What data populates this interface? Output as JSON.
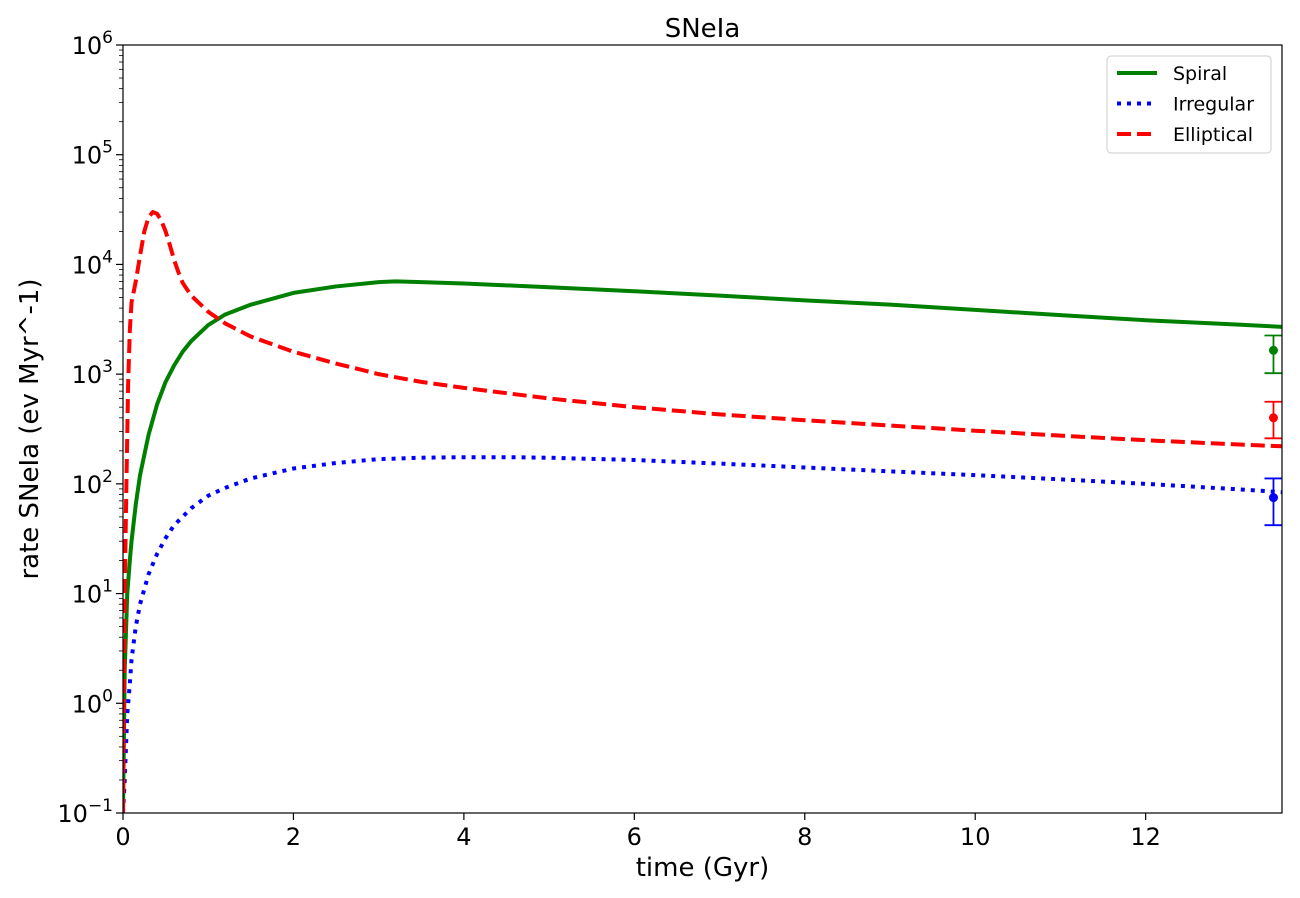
{
  "chart_data": {
    "type": "line",
    "title": "SNeIa",
    "xlabel": "time (Gyr)",
    "ylabel": "rate SNeIa (ev Myr^-1)",
    "xlim": [
      0,
      13.6
    ],
    "ylim": [
      0.1,
      1000000
    ],
    "yscale": "log",
    "grid": false,
    "legend_position": "top-right",
    "x_ticks": [
      0,
      2,
      4,
      6,
      8,
      10,
      12
    ],
    "x_tick_labels": [
      "0",
      "2",
      "4",
      "6",
      "8",
      "10",
      "12"
    ],
    "y_ticks": [
      0.1,
      1,
      10,
      100,
      1000,
      10000,
      100000,
      1000000
    ],
    "y_tick_labels": [
      {
        "base": "10",
        "exp": "−1"
      },
      {
        "base": "10",
        "exp": "0"
      },
      {
        "base": "10",
        "exp": "1"
      },
      {
        "base": "10",
        "exp": "2"
      },
      {
        "base": "10",
        "exp": "3"
      },
      {
        "base": "10",
        "exp": "4"
      },
      {
        "base": "10",
        "exp": "5"
      },
      {
        "base": "10",
        "exp": "6"
      }
    ],
    "series": [
      {
        "name": "Spiral",
        "color": "#008000",
        "style": "solid",
        "x": [
          0.0,
          0.02,
          0.05,
          0.08,
          0.1,
          0.15,
          0.2,
          0.3,
          0.4,
          0.5,
          0.6,
          0.7,
          0.8,
          1.0,
          1.2,
          1.5,
          2.0,
          2.5,
          3.0,
          3.2,
          3.5,
          4.0,
          5.0,
          6.0,
          7.0,
          8.0,
          9.0,
          10.0,
          11.0,
          12.0,
          13.0,
          13.6
        ],
        "y": [
          0.1,
          2,
          10,
          20,
          30,
          65,
          120,
          280,
          530,
          850,
          1200,
          1600,
          2000,
          2800,
          3500,
          4300,
          5500,
          6300,
          6900,
          7000,
          6900,
          6700,
          6200,
          5700,
          5200,
          4700,
          4300,
          3850,
          3450,
          3100,
          2850,
          2700
        ]
      },
      {
        "name": "Irregular",
        "color": "#0000ff",
        "style": "dotted",
        "x": [
          0.0,
          0.02,
          0.05,
          0.08,
          0.1,
          0.15,
          0.2,
          0.3,
          0.4,
          0.5,
          0.6,
          0.8,
          1.0,
          1.2,
          1.5,
          2.0,
          2.5,
          3.0,
          3.5,
          4.0,
          4.5,
          5.0,
          6.0,
          7.0,
          8.0,
          9.0,
          10.0,
          11.0,
          12.0,
          13.0,
          13.6
        ],
        "y": [
          0.1,
          0.2,
          0.8,
          1.5,
          2.5,
          5,
          8,
          15,
          23,
          32,
          42,
          60,
          78,
          92,
          112,
          138,
          155,
          168,
          173,
          175,
          175,
          173,
          165,
          153,
          141,
          130,
          120,
          110,
          100,
          90,
          84
        ]
      },
      {
        "name": "Elliptical",
        "color": "#ff0000",
        "style": "dashed",
        "x": [
          0.0,
          0.02,
          0.04,
          0.06,
          0.08,
          0.1,
          0.15,
          0.2,
          0.25,
          0.3,
          0.35,
          0.4,
          0.45,
          0.5,
          0.55,
          0.6,
          0.65,
          0.7,
          0.8,
          1.0,
          1.2,
          1.5,
          2.0,
          2.5,
          3.0,
          3.5,
          4.0,
          5.0,
          6.0,
          7.0,
          8.0,
          9.0,
          10.0,
          11.0,
          12.0,
          13.0,
          13.6
        ],
        "y": [
          0.1,
          10,
          100,
          800,
          2500,
          4500,
          7000,
          12000,
          20000,
          27000,
          30000,
          29000,
          25000,
          20000,
          15000,
          11000,
          8500,
          6800,
          5200,
          3700,
          2900,
          2200,
          1600,
          1250,
          1000,
          850,
          750,
          600,
          500,
          430,
          380,
          340,
          305,
          275,
          250,
          230,
          220
        ]
      }
    ],
    "error_points": [
      {
        "series": "Spiral",
        "color": "#008000",
        "x": 13.5,
        "y": 1650,
        "low": 1020,
        "high": 2250
      },
      {
        "series": "Elliptical",
        "color": "#ff0000",
        "x": 13.5,
        "y": 400,
        "low": 260,
        "high": 560
      },
      {
        "series": "Irregular",
        "color": "#0000ff",
        "x": 13.5,
        "y": 75,
        "low": 42,
        "high": 112
      }
    ]
  }
}
